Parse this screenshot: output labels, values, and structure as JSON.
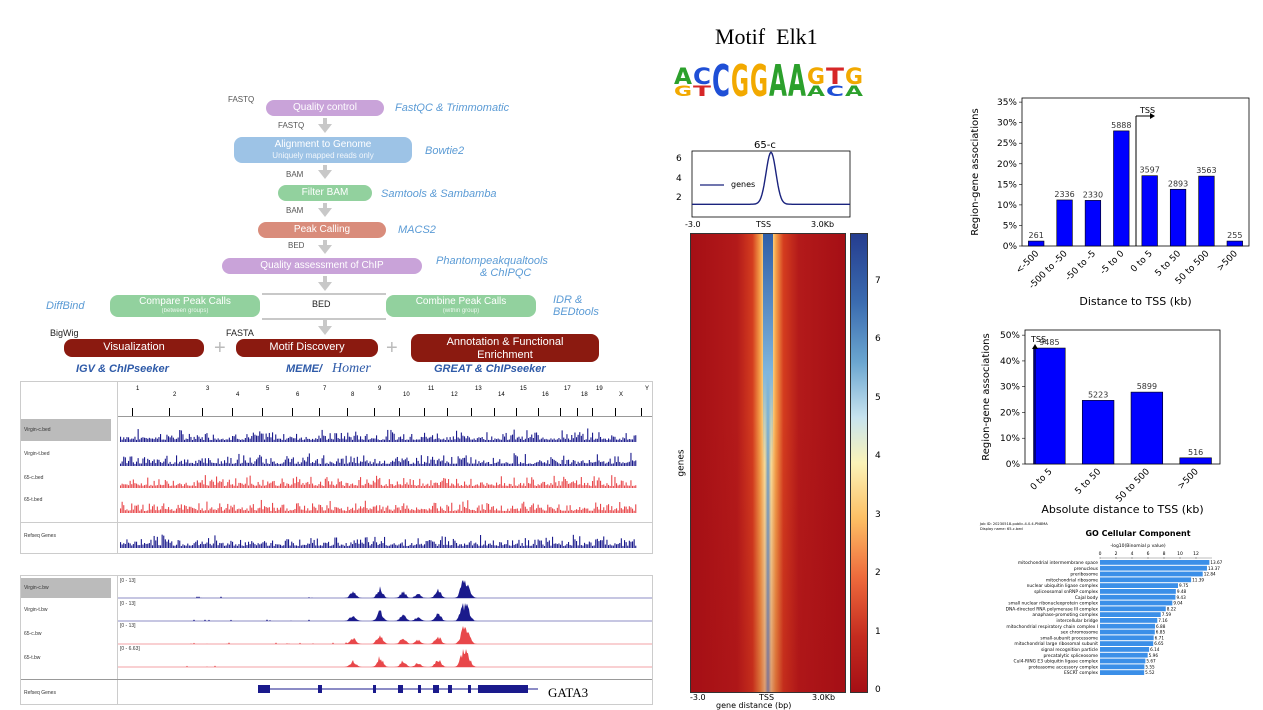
{
  "pipeline": {
    "fastq_top": "FASTQ",
    "fastq_mid": "FASTQ",
    "bam1": "BAM",
    "bam2": "BAM",
    "bed_tag": "BED",
    "bed_center": "BED",
    "bigwig": "BigWig",
    "fasta": "FASTA",
    "steps": {
      "quality_control": "Quality control",
      "alignment": "Alignment to Genome",
      "alignment_sub": "Uniquely mapped reads only",
      "filter_bam": "Filter BAM",
      "peak_calling": "Peak Calling",
      "quality_chip": "Quality assessment of ChIP",
      "compare_peaks": "Compare Peak Calls",
      "compare_sub": "(between groups)",
      "combine_peaks": "Combine Peak Calls",
      "combine_sub": "(within group)",
      "visualization": "Visualization",
      "motif_discovery": "Motif Discovery",
      "annotation": "Annotation & Functional Enrichment"
    },
    "tools": {
      "qc": "FastQC & Trimmomatic",
      "align": "Bowtie2",
      "filter": "Samtools & Sambamba",
      "peak": "MACS2",
      "quality_chip_1": "Phantompeakqualtools",
      "quality_chip_2": "& ChIPQC",
      "diffbind": "DiffBind",
      "idr_1": "IDR &",
      "idr_2": "BEDtools",
      "igv": "IGV & ChIPseeker",
      "meme": "MEME/",
      "homer": "Homer",
      "great": "GREAT & ChIPseeker"
    },
    "colors": {
      "purple": "#c9a3d9",
      "blue": "#9dc3e6",
      "green": "#92d19e",
      "salmon": "#d98c7b",
      "darkred": "#8b1a10",
      "tool_blue": "#5b9bd5"
    }
  },
  "igv_top": {
    "chromosomes": [
      "1",
      "2",
      "3",
      "4",
      "5",
      "6",
      "7",
      "8",
      "9",
      "10",
      "11",
      "12",
      "13",
      "14",
      "15",
      "16",
      "17",
      "18",
      "19",
      "X",
      "Y"
    ],
    "tracks": [
      "Virgin-c.bed",
      "Virgin-t.bed",
      "65-c.bed",
      "65-t.bed"
    ],
    "refseq": "Refseq Genes"
  },
  "igv_bottom": {
    "tracks": [
      {
        "name": "Virgin-c.bw",
        "range": "[0 - 13]"
      },
      {
        "name": "Virgin-t.bw",
        "range": "[0 - 13]"
      },
      {
        "name": "65-c.bw",
        "range": "[0 - 13]"
      },
      {
        "name": "65-t.bw",
        "range": "[0 - 6.63]"
      }
    ],
    "refseq": "Refseq Genes",
    "gene": "GATA3"
  },
  "motif": {
    "title_left": "Motif",
    "title_right": "Elk1",
    "consensus": "ACCGGAAGTG",
    "colors": {
      "A": "#2ca02c",
      "C": "#1f4fd6",
      "G": "#f2a900",
      "T": "#d62728"
    }
  },
  "profile": {
    "title": "65-c",
    "legend": "genes",
    "yticks": [
      "6",
      "4",
      "2"
    ],
    "x_left": "-3.0",
    "x_mid": "TSS",
    "x_right": "3.0Kb"
  },
  "heatmap": {
    "ylabel": "genes",
    "x_left": "-3.0",
    "x_mid": "TSS",
    "x_right": "3.0Kb",
    "xlabel": "gene distance (bp)",
    "colorbar_ticks": [
      "7",
      "6",
      "5",
      "4",
      "3",
      "2",
      "1",
      "0"
    ]
  },
  "chart_data": [
    {
      "type": "bar",
      "categories": [
        "<-500",
        "-500 to -50",
        "-50 to -5",
        "-5 to 0",
        "0 to 5",
        "5 to 50",
        "50 to 500",
        ">500"
      ],
      "values": [
        261,
        2336,
        2330,
        5888,
        3597,
        2893,
        3563,
        255
      ],
      "percent": [
        1.2,
        11.2,
        11.1,
        28.0,
        17.1,
        13.8,
        17.0,
        1.2
      ],
      "title": "",
      "xlabel": "Distance to TSS (kb)",
      "ylabel": "Region-gene associations",
      "yticks": [
        "0%",
        "5%",
        "10%",
        "15%",
        "20%",
        "25%",
        "30%",
        "35%"
      ],
      "ylim": [
        0,
        36
      ],
      "annotation": "TSS",
      "bar_color": "#0000ff"
    },
    {
      "type": "bar",
      "categories": [
        "0 to 5",
        "5 to 50",
        "50 to 500",
        ">500"
      ],
      "values": [
        9485,
        5223,
        5899,
        516
      ],
      "percent": [
        45.0,
        24.7,
        27.9,
        2.4
      ],
      "title": "",
      "xlabel": "Absolute distance to TSS (kb)",
      "ylabel": "Region-gene associations",
      "yticks": [
        "0%",
        "10%",
        "20%",
        "30%",
        "40%",
        "50%"
      ],
      "ylim": [
        0,
        52
      ],
      "annotation": "TSS",
      "bar_color": "#0000ff"
    },
    {
      "type": "bar",
      "title": "GO Cellular Component",
      "xlabel": "-log10(Binomial p value)",
      "xticks": [
        "0",
        "2",
        "4",
        "6",
        "8",
        "10",
        "12"
      ],
      "xlim": [
        0,
        14
      ],
      "job_id": "Job ID: 20230518-public-4.0.4-PN8MA",
      "display_name": "Display name: 65-c.bed",
      "bar_color": "#3b8fe8",
      "categories": [
        "mitochondrial intermembrane space",
        "prenucleus",
        "preribosome",
        "mitochondrial ribosome",
        "nuclear ubiquitin ligase complex",
        "spliceosomal snRNP complex",
        "Cajal body",
        "small nuclear ribonucleoprotein complex",
        "DNA-directed RNA polymerase III complex",
        "anaphase-promoting complex",
        "intercellular bridge",
        "mitochondrial respiratory chain complex I",
        "sex chromosome",
        "small-subunit processome",
        "mitochondrial large ribosomal subunit",
        "signal recognition particle",
        "precatalytic spliceosome",
        "Cul4-RING E3 ubiquitin ligase complex",
        "proteasome accessory complex",
        "ESCRT complex"
      ],
      "values": [
        13.67,
        13.37,
        12.84,
        11.39,
        9.75,
        9.48,
        9.43,
        9.04,
        8.22,
        7.59,
        7.16,
        6.88,
        6.85,
        6.71,
        6.65,
        6.14,
        5.96,
        5.67,
        5.55,
        5.52
      ]
    }
  ]
}
